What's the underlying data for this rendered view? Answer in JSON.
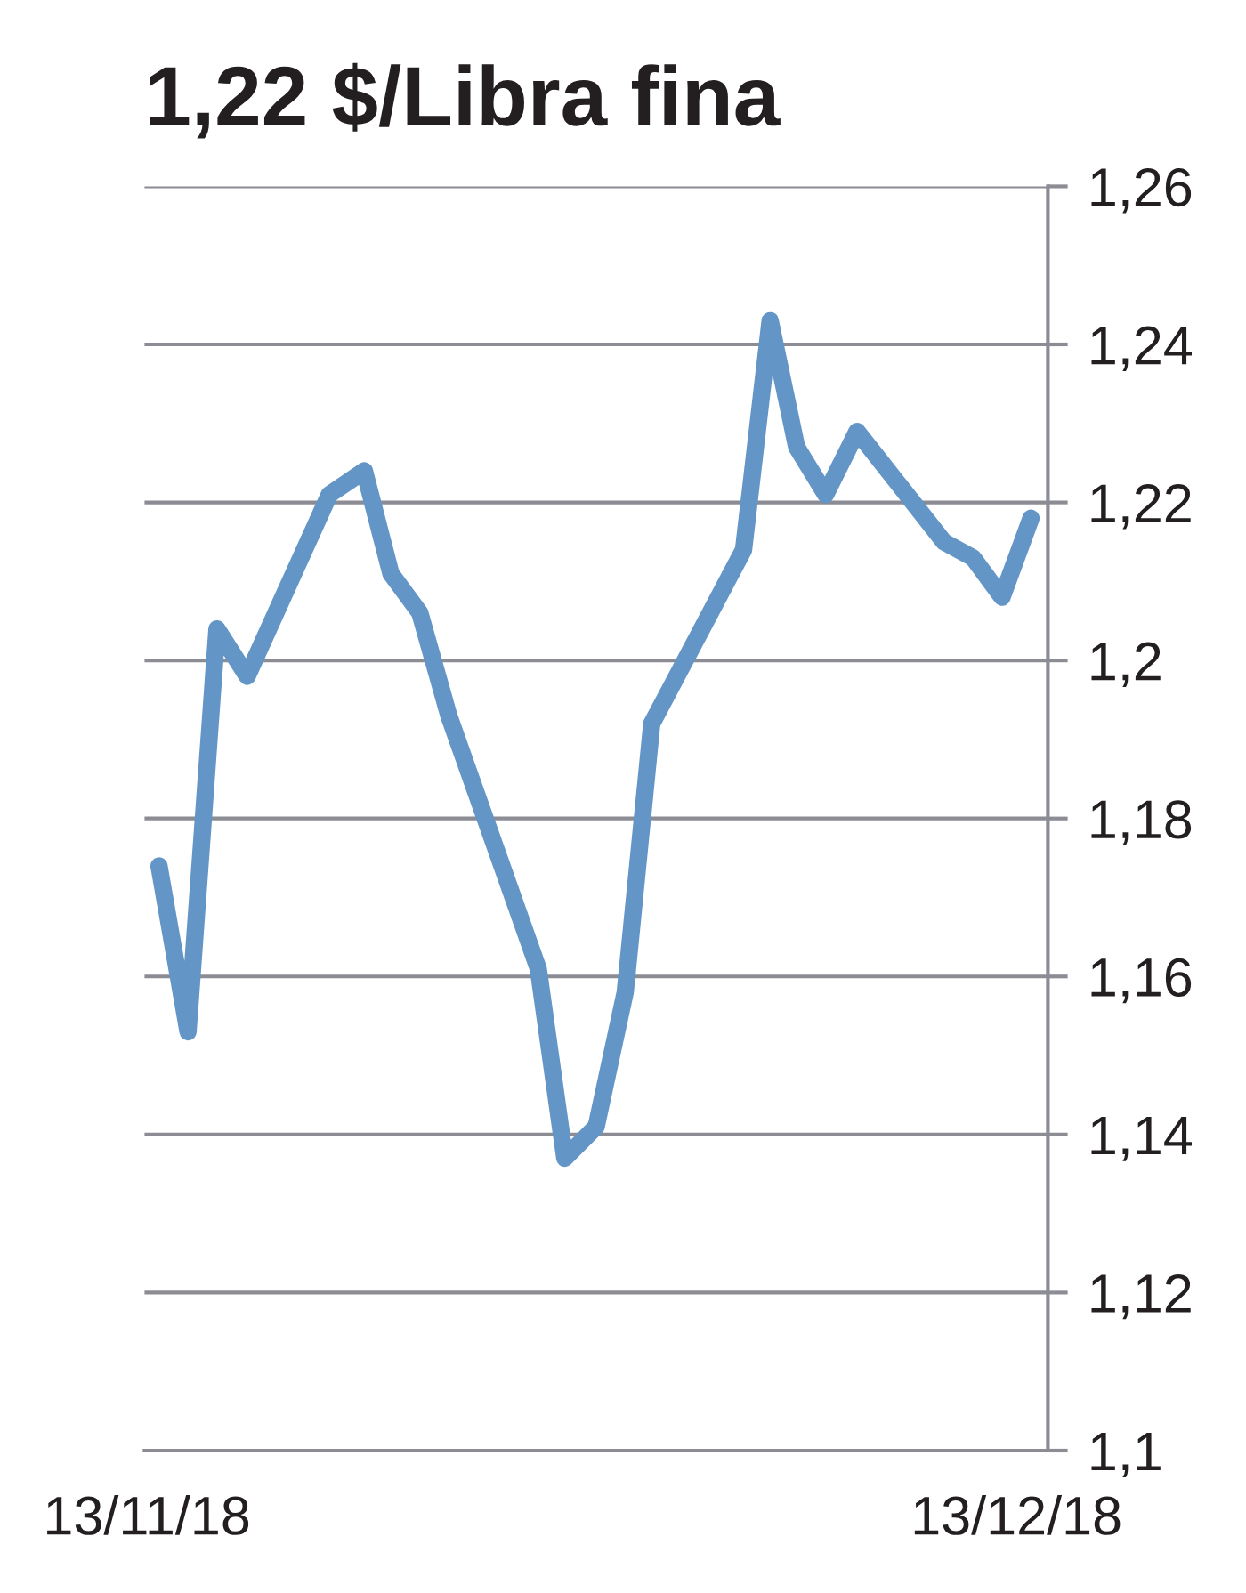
{
  "chart_data": {
    "type": "line",
    "title": "1,22 $/Libra fina",
    "x": [
      "2018-11-13T10:00",
      "2018-11-14T10:00",
      "2018-11-15T10:00",
      "2018-11-16T11:00",
      "2018-11-19T07:00",
      "2018-11-20T12:00",
      "2018-11-21T10:00",
      "2018-11-22T10:00",
      "2018-11-23T10:00",
      "2018-11-26T12:00",
      "2018-11-27T10:00",
      "2018-11-28T12:00",
      "2018-11-29T12:00",
      "2018-11-30T10:00",
      "2018-12-03T14:00",
      "2018-12-04T12:00",
      "2018-12-05T10:00",
      "2018-12-06T10:00",
      "2018-12-07T12:00",
      "2018-12-10T12:00",
      "2018-12-11T12:00",
      "2018-12-12T12:00",
      "2018-12-13T12:00"
    ],
    "series": [
      {
        "color": "#6395c7",
        "values": [
          1.174,
          1.153,
          1.204,
          1.198,
          1.221,
          1.224,
          1.211,
          1.206,
          1.193,
          1.161,
          1.137,
          1.141,
          1.158,
          1.192,
          1.214,
          1.243,
          1.227,
          1.221,
          1.229,
          1.215,
          1.213,
          1.208,
          1.218
        ]
      }
    ],
    "xlim": [
      "2018-11-12T22:00",
      "2018-12-14T02:00"
    ],
    "xticks": [
      {
        "value": "2018-11-13",
        "label": "13/11/18"
      },
      {
        "value": "2018-12-13",
        "label": "13/12/18"
      }
    ],
    "ylim": [
      1.1,
      1.26
    ],
    "yticks": [
      {
        "value": 1.1,
        "label": "1,1"
      },
      {
        "value": 1.12,
        "label": "1,12"
      },
      {
        "value": 1.14,
        "label": "1,14"
      },
      {
        "value": 1.16,
        "label": "1,16"
      },
      {
        "value": 1.18,
        "label": "1,18"
      },
      {
        "value": 1.2,
        "label": "1,2"
      },
      {
        "value": 1.22,
        "label": "1,22"
      },
      {
        "value": 1.24,
        "label": "1,24"
      },
      {
        "value": 1.26,
        "label": "1,26"
      }
    ],
    "grid": "y",
    "legend": false,
    "marker": "none",
    "line_style": "solid"
  }
}
